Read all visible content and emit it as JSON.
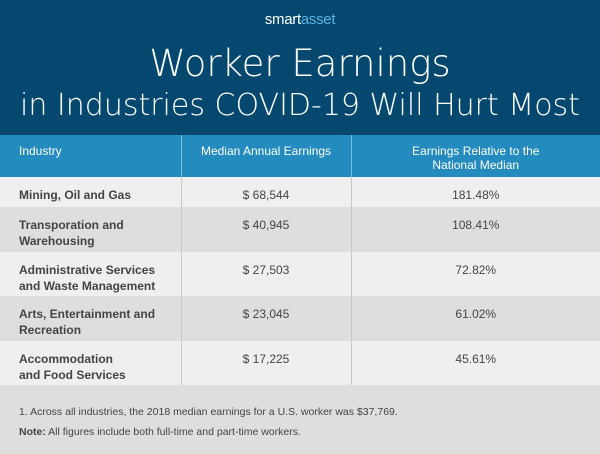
{
  "logo": {
    "part1": "smart",
    "part2": "asset"
  },
  "title_line1": "Worker Earnings",
  "title_line2": "in Industries COVID-19 Will Hurt Most",
  "chart_data": {
    "type": "table",
    "columns": [
      "Industry",
      "Median Annual Earnings",
      "Earnings Relative to the National Median"
    ],
    "rows": [
      {
        "industry": "Mining, Oil and Gas",
        "earnings": "$ 68,544",
        "relative": "181.48%"
      },
      {
        "industry": "Transporation and Warehousing",
        "earnings": "$ 40,945",
        "relative": "108.41%"
      },
      {
        "industry": "Administrative Services and Waste Management",
        "earnings": "$ 27,503",
        "relative": "72.82%"
      },
      {
        "industry": "Arts, Entertainment and Recreation",
        "earnings": "$ 23,045",
        "relative": "61.02%"
      },
      {
        "industry": "Accommodation and Food Services",
        "earnings": "$ 17,225",
        "relative": "45.61%"
      }
    ]
  },
  "footnote": "1. Across all industries, the 2018 median earnings for a U.S. worker was $37,769.",
  "note_label": "Note:",
  "note_text": " All figures include both full-time and part-time workers.",
  "colors": {
    "header_bg": "#04486f",
    "table_header": "#238bbd",
    "accent": "#5ab4e0"
  }
}
